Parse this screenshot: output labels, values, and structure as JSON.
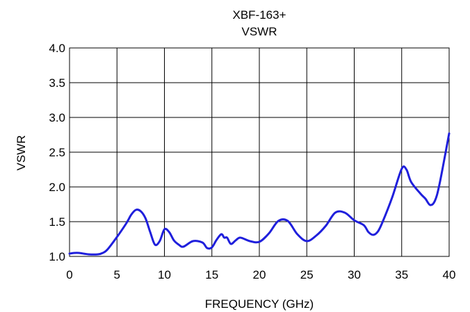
{
  "chart_data": {
    "type": "line",
    "title": "XBF-163+",
    "subtitle": "VSWR",
    "xlabel": "FREQUENCY (GHz)",
    "ylabel": "VSWR",
    "xlim": [
      0,
      40
    ],
    "ylim": [
      1.0,
      4.0
    ],
    "xticks": [
      0,
      5,
      10,
      15,
      20,
      25,
      30,
      35,
      40
    ],
    "yticks": [
      1.0,
      1.5,
      2.0,
      2.5,
      3.0,
      3.5,
      4.0
    ],
    "xtick_labels": [
      "0",
      "5",
      "10",
      "15",
      "20",
      "25",
      "30",
      "35",
      "40"
    ],
    "ytick_labels": [
      "1.0",
      "1.5",
      "2.0",
      "2.5",
      "3.0",
      "3.5",
      "4.0"
    ],
    "grid": true,
    "series_color": "#1f1fdc",
    "series": [
      {
        "x": [
          0,
          0.5,
          1,
          2,
          3,
          3.5,
          4,
          5,
          6,
          6.5,
          7,
          7.5,
          8,
          8.5,
          9,
          9.5,
          10,
          10.5,
          11,
          11.5,
          12,
          13,
          14,
          14.5,
          15,
          15.5,
          16,
          16.3,
          16.6,
          17,
          17.5,
          18,
          19,
          20,
          21,
          22,
          23,
          24,
          25,
          26,
          27,
          28,
          29,
          30,
          31,
          31.5,
          32,
          32.5,
          33,
          34,
          35,
          35.5,
          36,
          37,
          37.5,
          38,
          38.5,
          39,
          40
        ],
        "y": [
          1.04,
          1.05,
          1.05,
          1.03,
          1.03,
          1.05,
          1.1,
          1.28,
          1.48,
          1.6,
          1.67,
          1.65,
          1.55,
          1.35,
          1.17,
          1.22,
          1.39,
          1.35,
          1.23,
          1.17,
          1.14,
          1.22,
          1.2,
          1.12,
          1.13,
          1.24,
          1.32,
          1.27,
          1.27,
          1.18,
          1.23,
          1.27,
          1.22,
          1.21,
          1.33,
          1.51,
          1.51,
          1.32,
          1.22,
          1.3,
          1.44,
          1.63,
          1.63,
          1.52,
          1.45,
          1.35,
          1.31,
          1.36,
          1.5,
          1.85,
          2.26,
          2.25,
          2.07,
          1.9,
          1.83,
          1.74,
          1.8,
          2.05,
          2.77
        ]
      }
    ]
  }
}
